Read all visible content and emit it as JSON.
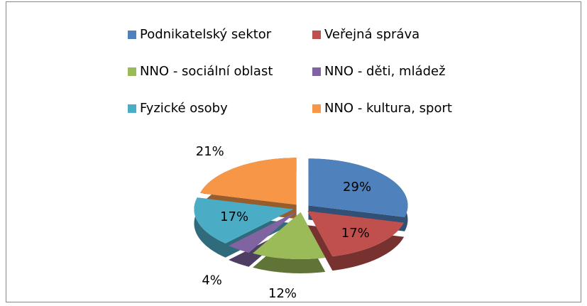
{
  "chart_data": {
    "type": "pie",
    "categories": [
      "Podnikatelský sektor",
      "Veřejná správa",
      "NNO - sociální oblast",
      "NNO - děti, mládež",
      "Fyzické osoby",
      "NNO - kultura, sport"
    ],
    "values": [
      29,
      17,
      12,
      4,
      17,
      21
    ],
    "value_labels": [
      "29%",
      "17%",
      "12%",
      "4%",
      "17%",
      "21%"
    ],
    "colors": [
      "#4f81bd",
      "#c0504d",
      "#9bbb59",
      "#8064a2",
      "#4bacc6",
      "#f79646"
    ],
    "legend": "top"
  }
}
